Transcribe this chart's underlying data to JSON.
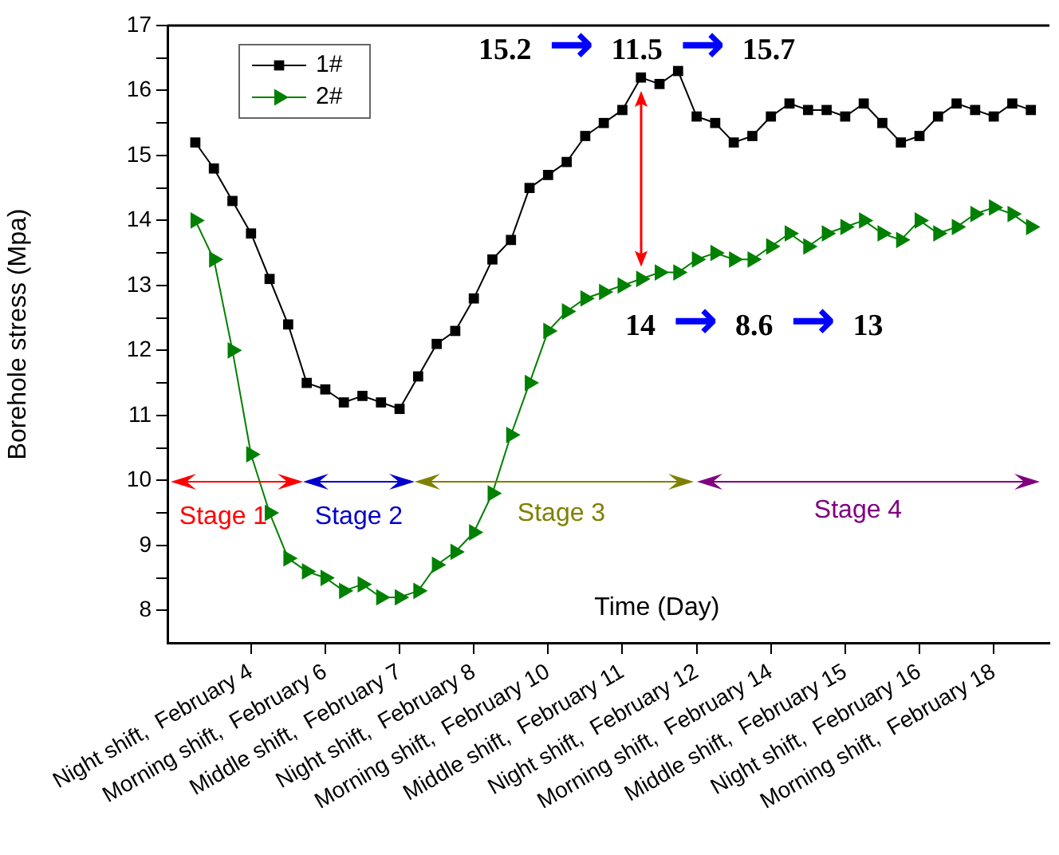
{
  "chart_data": {
    "type": "line",
    "ylabel": "Borehole stress (Mpa)",
    "xlabel": "Time (Day)",
    "categories": [
      null,
      null,
      null,
      "Night shift,  February 4",
      null,
      null,
      null,
      "Morning shift,  February 6",
      null,
      null,
      null,
      "Middle shift,  February 7",
      null,
      null,
      null,
      "Night shift,  February 8",
      null,
      null,
      null,
      "Morning shift,  February 10",
      null,
      null,
      null,
      "Middle shift,  February 11",
      null,
      null,
      null,
      "Night shift,  February 12",
      null,
      null,
      null,
      "Morning shift,  February 14",
      null,
      null,
      null,
      "Middle shift,  February 15",
      null,
      null,
      null,
      "Night shift,  February 16",
      null,
      null,
      null,
      "Morning shift,  February 18",
      null,
      null
    ],
    "series": [
      {
        "name": "1#",
        "color": "#000000",
        "marker": "square",
        "values": [
          15.2,
          14.8,
          14.3,
          13.8,
          13.1,
          12.4,
          11.5,
          11.4,
          11.2,
          11.3,
          11.2,
          11.1,
          11.6,
          12.1,
          12.3,
          12.8,
          13.4,
          13.7,
          14.5,
          14.7,
          14.9,
          15.3,
          15.5,
          15.7,
          16.2,
          16.1,
          16.3,
          15.6,
          15.5,
          15.2,
          15.3,
          15.6,
          15.8,
          15.7,
          15.7,
          15.6,
          15.8,
          15.5,
          15.2,
          15.3,
          15.6,
          15.8,
          15.7,
          15.6,
          15.8,
          15.7
        ]
      },
      {
        "name": "2#",
        "color": "#008000",
        "marker": "triangle",
        "values": [
          14.0,
          13.4,
          12.0,
          10.4,
          9.5,
          8.8,
          8.6,
          8.5,
          8.3,
          8.4,
          8.2,
          8.2,
          8.3,
          8.7,
          8.9,
          9.2,
          9.8,
          10.7,
          11.5,
          12.3,
          12.6,
          12.8,
          12.9,
          13.0,
          13.1,
          13.2,
          13.2,
          13.4,
          13.5,
          13.4,
          13.4,
          13.6,
          13.8,
          13.6,
          13.8,
          13.9,
          14.0,
          13.8,
          13.7,
          14.0,
          13.8,
          13.9,
          14.1,
          14.2,
          14.1,
          13.9
        ]
      }
    ],
    "ylim": [
      7.5,
      17
    ],
    "yticks": [
      8,
      {
        "value": 8.5,
        "label": null
      },
      9,
      {
        "value": 9.5,
        "label": null
      },
      10,
      {
        "value": 10.5,
        "label": null
      },
      11,
      {
        "value": 11.5,
        "label": null
      },
      12,
      {
        "value": 12.5,
        "label": null
      },
      13,
      {
        "value": 13.5,
        "label": null
      },
      14,
      {
        "value": 14.5,
        "label": null
      },
      15,
      {
        "value": 15.5,
        "label": null
      },
      16,
      {
        "value": 16.5,
        "label": null
      },
      17
    ],
    "annotations": [
      "15.2 → 11.5 → 15.7",
      "14 → 8.6 → 13",
      "Stage 1",
      "Stage 2",
      "Stage 3",
      "Stage 4"
    ],
    "legend": "top left",
    "grid": false,
    "line_style": "solid"
  }
}
